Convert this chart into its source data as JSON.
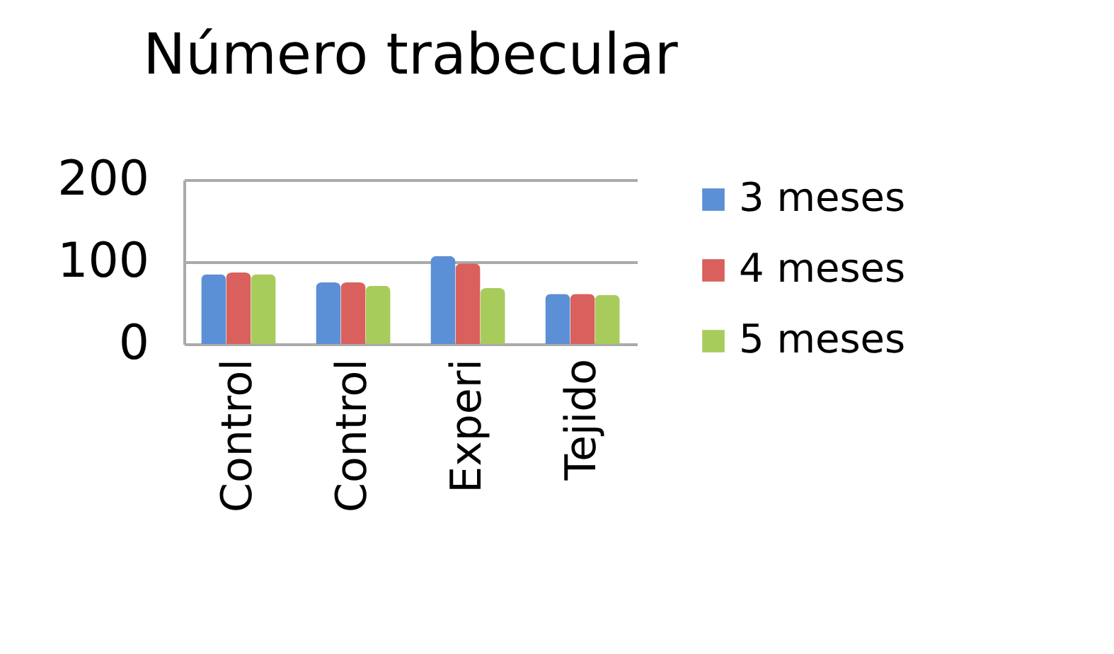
{
  "chart_data": {
    "type": "bar",
    "title": "Número trabecular",
    "categories": [
      "Control",
      "Control",
      "Experi",
      "Tejido"
    ],
    "series": [
      {
        "name": "3 meses",
        "color": "#5b8fd6",
        "values": [
          85,
          75,
          107,
          61
        ]
      },
      {
        "name": "4 meses",
        "color": "#d9605c",
        "values": [
          87,
          75,
          98,
          61
        ]
      },
      {
        "name": "5 meses",
        "color": "#a8cc5c",
        "values": [
          85,
          71,
          68,
          60
        ]
      }
    ],
    "ylim": [
      0,
      200
    ],
    "yticks": [
      0,
      100,
      200
    ],
    "grid": "y",
    "legend": "right"
  }
}
